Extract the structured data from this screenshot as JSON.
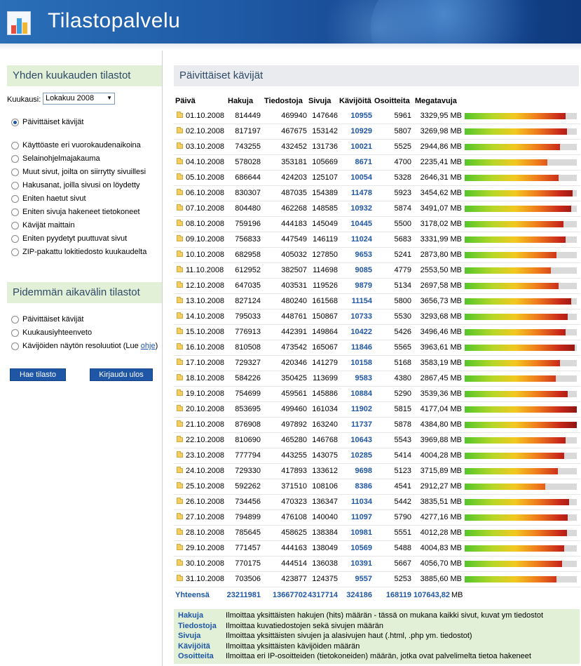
{
  "app": {
    "title": "Tilastopalvelu"
  },
  "sidebar": {
    "monthly_heading": "Yhden kuukauden tilastot",
    "month_label": "Kuukausi:",
    "month_value": "Lokakuu 2008",
    "monthly_options": [
      "Päivittäiset kävijät",
      "Käyttöaste eri vuorokaudenaikoina",
      "Selainohjelmajakauma",
      "Muut sivut, joilta on siirrytty sivuillesi",
      "Hakusanat, joilla sivusi on löydetty",
      "Eniten haetut sivut",
      "Eniten sivuja hakeneet tietokoneet",
      "Kävijät maittain",
      "Eniten pyydetyt puuttuvat sivut",
      "ZIP-pakattu lokitiedosto kuukaudelta"
    ],
    "long_heading": "Pidemmän aikavälin tilastot",
    "long_options": [
      "Päivittäiset kävijät",
      "Kuukausiyhteenveto",
      "Kävijöiden näytön resoluutiot (Lue "
    ],
    "long_link": "ohje",
    "long_link_suffix": ")",
    "fetch_button": "Hae tilasto",
    "logout_button": "Kirjaudu ulos"
  },
  "main": {
    "heading": "Päivittäiset kävijät",
    "columns": [
      "Päivä",
      "Hakuja",
      "Tiedostoja",
      "Sivuja",
      "Kävijöitä",
      "Osoitteita",
      "Megatavuja"
    ],
    "rows": [
      [
        "01.10.2008",
        "814449",
        "469940",
        "147646",
        "10955",
        "5961",
        "3329,95 MB"
      ],
      [
        "02.10.2008",
        "817197",
        "467675",
        "153142",
        "10929",
        "5807",
        "3269,98 MB"
      ],
      [
        "03.10.2008",
        "743255",
        "432452",
        "131736",
        "10021",
        "5525",
        "2944,86 MB"
      ],
      [
        "04.10.2008",
        "578028",
        "353181",
        "105669",
        "8671",
        "4700",
        "2235,41 MB"
      ],
      [
        "05.10.2008",
        "686644",
        "424203",
        "125107",
        "10054",
        "5328",
        "2646,31 MB"
      ],
      [
        "06.10.2008",
        "830307",
        "487035",
        "154389",
        "11478",
        "5923",
        "3454,62 MB"
      ],
      [
        "07.10.2008",
        "804480",
        "462268",
        "148585",
        "10932",
        "5874",
        "3491,07 MB"
      ],
      [
        "08.10.2008",
        "759196",
        "444183",
        "145049",
        "10445",
        "5500",
        "3178,02 MB"
      ],
      [
        "09.10.2008",
        "756833",
        "447549",
        "146119",
        "11024",
        "5683",
        "3331,99 MB"
      ],
      [
        "10.10.2008",
        "682958",
        "405032",
        "127850",
        "9653",
        "5241",
        "2873,80 MB"
      ],
      [
        "11.10.2008",
        "612952",
        "382507",
        "114698",
        "9085",
        "4779",
        "2553,50 MB"
      ],
      [
        "12.10.2008",
        "647035",
        "403531",
        "119526",
        "9879",
        "5134",
        "2697,58 MB"
      ],
      [
        "13.10.2008",
        "827124",
        "480240",
        "161568",
        "11154",
        "5800",
        "3656,73 MB"
      ],
      [
        "14.10.2008",
        "795033",
        "448761",
        "150867",
        "10733",
        "5530",
        "3293,68 MB"
      ],
      [
        "15.10.2008",
        "776913",
        "442391",
        "149864",
        "10422",
        "5426",
        "3496,46 MB"
      ],
      [
        "16.10.2008",
        "810508",
        "473542",
        "165067",
        "11846",
        "5565",
        "3963,61 MB"
      ],
      [
        "17.10.2008",
        "729327",
        "420346",
        "141279",
        "10158",
        "5168",
        "3583,19 MB"
      ],
      [
        "18.10.2008",
        "584226",
        "350425",
        "113699",
        "9583",
        "4380",
        "2867,45 MB"
      ],
      [
        "19.10.2008",
        "754699",
        "459561",
        "145886",
        "10884",
        "5290",
        "3539,36 MB"
      ],
      [
        "20.10.2008",
        "853695",
        "499460",
        "161034",
        "11902",
        "5815",
        "4177,04 MB"
      ],
      [
        "21.10.2008",
        "876908",
        "497892",
        "163240",
        "11737",
        "5878",
        "4384,80 MB"
      ],
      [
        "22.10.2008",
        "810690",
        "465280",
        "146768",
        "10643",
        "5543",
        "3969,88 MB"
      ],
      [
        "23.10.2008",
        "777794",
        "443255",
        "143075",
        "10285",
        "5414",
        "4004,28 MB"
      ],
      [
        "24.10.2008",
        "729330",
        "417893",
        "133612",
        "9698",
        "5123",
        "3715,89 MB"
      ],
      [
        "25.10.2008",
        "592262",
        "371510",
        "108106",
        "8386",
        "4541",
        "2912,27 MB"
      ],
      [
        "26.10.2008",
        "734456",
        "470323",
        "136347",
        "11034",
        "5442",
        "3835,51 MB"
      ],
      [
        "27.10.2008",
        "794899",
        "476108",
        "140040",
        "11097",
        "5790",
        "4277,16 MB"
      ],
      [
        "28.10.2008",
        "785645",
        "458625",
        "138384",
        "10981",
        "5551",
        "4012,28 MB"
      ],
      [
        "29.10.2008",
        "771457",
        "444163",
        "138049",
        "10569",
        "5488",
        "4004,83 MB"
      ],
      [
        "30.10.2008",
        "770175",
        "444514",
        "136038",
        "10391",
        "5667",
        "4056,70 MB"
      ],
      [
        "31.10.2008",
        "703506",
        "423877",
        "124375",
        "9557",
        "5253",
        "3885,60 MB"
      ]
    ],
    "bar_fractions": [
      0.9,
      0.91,
      0.85,
      0.74,
      0.84,
      0.96,
      0.95,
      0.88,
      0.9,
      0.82,
      0.77,
      0.84,
      0.95,
      0.92,
      0.9,
      0.98,
      0.85,
      0.81,
      0.92,
      1.0,
      1.0,
      0.9,
      0.89,
      0.83,
      0.72,
      0.93,
      0.92,
      0.91,
      0.89,
      0.87,
      0.82
    ],
    "totals": {
      "label": "Yhteensä",
      "hakuja": "23211981",
      "tiedostoja": "13667702",
      "sivuja": "4317714",
      "kavijoita": "324186",
      "osoitteita": "168119",
      "megatavuja": "107643,82",
      "unit": "MB"
    }
  },
  "legend": [
    {
      "term": "Hakuja",
      "desc": "Ilmoittaa yksittäisten hakujen (hits) määrän - tässä on mukana kaikki sivut, kuvat ym tiedostot"
    },
    {
      "term": "Tiedostoja",
      "desc": "Ilmoittaa kuvatiedostojen sekä sivujen määrän"
    },
    {
      "term": "Sivuja",
      "desc": "Ilmoittaa yksittäisten sivujen ja alasivujen haut (.html, .php ym. tiedostot)"
    },
    {
      "term": "Kävijöitä",
      "desc": "Ilmoittaa yksittäisten kävijöiden määrän"
    },
    {
      "term": "Osoitteita",
      "desc": "Ilmoittaa eri IP-osoitteiden (tietokoneiden) määrän, jotka ovat palvelimelta tietoa hakeneet"
    }
  ]
}
